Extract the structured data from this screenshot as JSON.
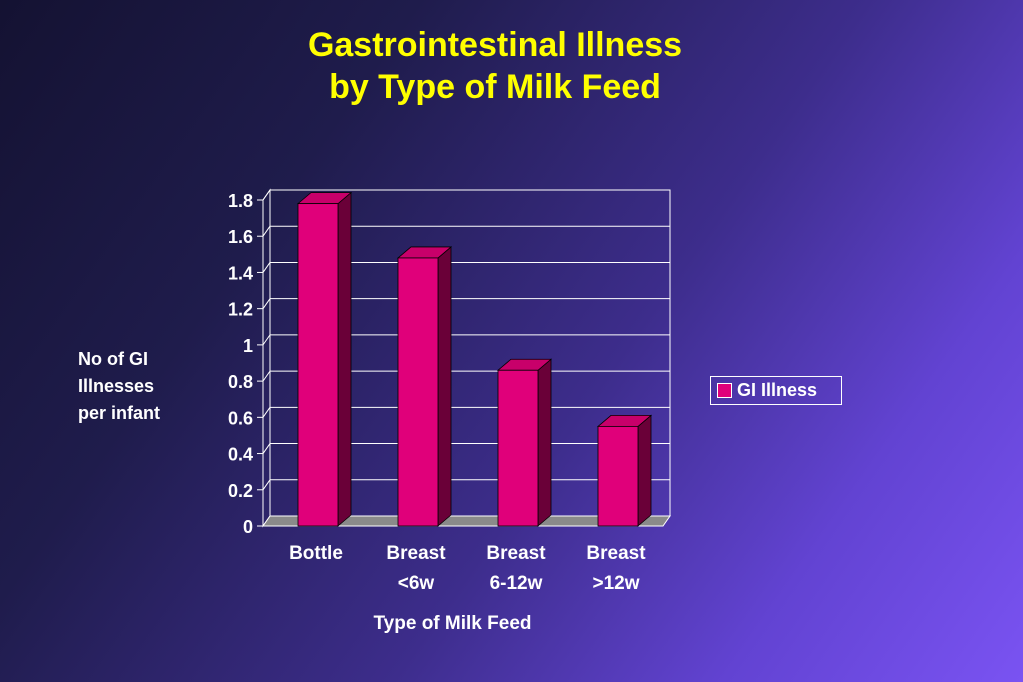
{
  "chart_data": {
    "type": "bar",
    "title": [
      "Gastrointestinal Illness",
      "by Type of Milk Feed"
    ],
    "xlabel": "Type of Milk Feed",
    "ylabel": [
      "No of GI",
      "Illnesses",
      "per infant"
    ],
    "categories": [
      [
        "Bottle"
      ],
      [
        "Breast",
        "<6w"
      ],
      [
        "Breast",
        "6-12w"
      ],
      [
        "Breast",
        ">12w"
      ]
    ],
    "series": [
      {
        "name": "GI Illness",
        "values": [
          1.78,
          1.48,
          0.86,
          0.55
        ]
      }
    ],
    "ylim": [
      0,
      1.8
    ],
    "yticks": [
      "0",
      "0.2",
      "0.4",
      "0.6",
      "0.8",
      "1",
      "1.2",
      "1.4",
      "1.6",
      "1.8"
    ],
    "grid": true,
    "legend": "right",
    "colors": {
      "bar_front": "#e0007a",
      "bar_top": "#c8006a",
      "bar_side": "#6a0038",
      "floor": "#8a8a8a",
      "title": "#ffff00",
      "text": "#ffffff"
    }
  }
}
